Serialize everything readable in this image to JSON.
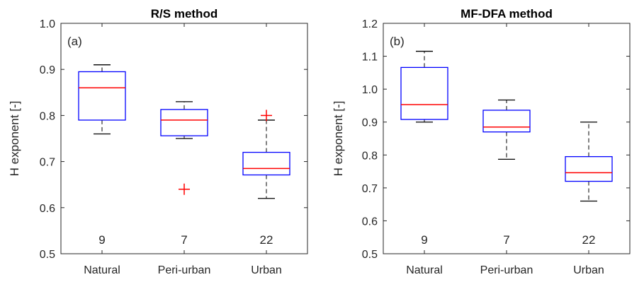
{
  "chart_data": [
    {
      "type": "box",
      "title": "R/S method",
      "panel_label": "(a)",
      "ylabel": "H exponent [-]",
      "xlabel": "",
      "ylim": [
        0.5,
        1.0
      ],
      "yticks": [
        "0.5",
        "0.6",
        "0.7",
        "0.8",
        "0.9",
        "1.0"
      ],
      "grid": false,
      "categories": [
        "Natural",
        "Peri-urban",
        "Urban"
      ],
      "counts": [
        "9",
        "7",
        "22"
      ],
      "boxes": [
        {
          "whisker_low": 0.76,
          "q1": 0.79,
          "median": 0.86,
          "q3": 0.895,
          "whisker_high": 0.91,
          "outliers": []
        },
        {
          "whisker_low": 0.75,
          "q1": 0.756,
          "median": 0.79,
          "q3": 0.813,
          "whisker_high": 0.83,
          "outliers": [
            0.64
          ]
        },
        {
          "whisker_low": 0.62,
          "q1": 0.671,
          "median": 0.685,
          "q3": 0.72,
          "whisker_high": 0.79,
          "outliers": [
            0.8
          ]
        }
      ]
    },
    {
      "type": "box",
      "title": "MF-DFA method",
      "panel_label": "(b)",
      "ylabel": "H exponent [-]",
      "xlabel": "",
      "ylim": [
        0.5,
        1.2
      ],
      "yticks": [
        "0.5",
        "0.6",
        "0.7",
        "0.8",
        "0.9",
        "1.0",
        "1.1",
        "1.2"
      ],
      "grid": false,
      "categories": [
        "Natural",
        "Peri-urban",
        "Urban"
      ],
      "counts": [
        "9",
        "7",
        "22"
      ],
      "boxes": [
        {
          "whisker_low": 0.9,
          "q1": 0.908,
          "median": 0.953,
          "q3": 1.066,
          "whisker_high": 1.115,
          "outliers": []
        },
        {
          "whisker_low": 0.787,
          "q1": 0.87,
          "median": 0.885,
          "q3": 0.936,
          "whisker_high": 0.967,
          "outliers": []
        },
        {
          "whisker_low": 0.66,
          "q1": 0.72,
          "median": 0.746,
          "q3": 0.795,
          "whisker_high": 0.9,
          "outliers": []
        }
      ]
    }
  ],
  "colors": {
    "box": "#0000ff",
    "median": "#ff0000",
    "whisker": "#000000",
    "outlier": "#ff0000",
    "axis": "#262626"
  }
}
